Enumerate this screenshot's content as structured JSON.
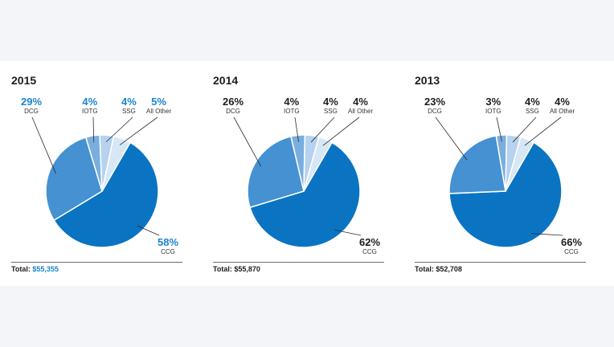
{
  "colors": {
    "CCG": "#0a74c2",
    "DCG": "#4591d2",
    "IOTG": "#7aaedf",
    "SSG": "#b6d2ee",
    "All Other": "#d7e7f6",
    "highlight_text": "#1a84cf",
    "dark_text": "#1d1d1d"
  },
  "chart_data": [
    {
      "type": "pie",
      "title": "2015",
      "labels": [
        "CCG",
        "DCG",
        "IOTG",
        "SSG",
        "All Other"
      ],
      "values": [
        58,
        29,
        4,
        4,
        5
      ],
      "value_labels": [
        "58%",
        "29%",
        "4%",
        "4%",
        "5%"
      ],
      "total_label": "Total:",
      "total_value": "$55,355",
      "highlight": true
    },
    {
      "type": "pie",
      "title": "2014",
      "labels": [
        "CCG",
        "DCG",
        "IOTG",
        "SSG",
        "All Other"
      ],
      "values": [
        62,
        26,
        4,
        4,
        4
      ],
      "value_labels": [
        "62%",
        "26%",
        "4%",
        "4%",
        "4%"
      ],
      "total_label": "Total:",
      "total_value": "$55,870",
      "highlight": false
    },
    {
      "type": "pie",
      "title": "2013",
      "labels": [
        "CCG",
        "DCG",
        "IOTG",
        "SSG",
        "All Other"
      ],
      "values": [
        66,
        23,
        3,
        4,
        4
      ],
      "value_labels": [
        "66%",
        "23%",
        "3%",
        "4%",
        "4%"
      ],
      "total_label": "Total:",
      "total_value": "$52,708",
      "highlight": false
    }
  ]
}
